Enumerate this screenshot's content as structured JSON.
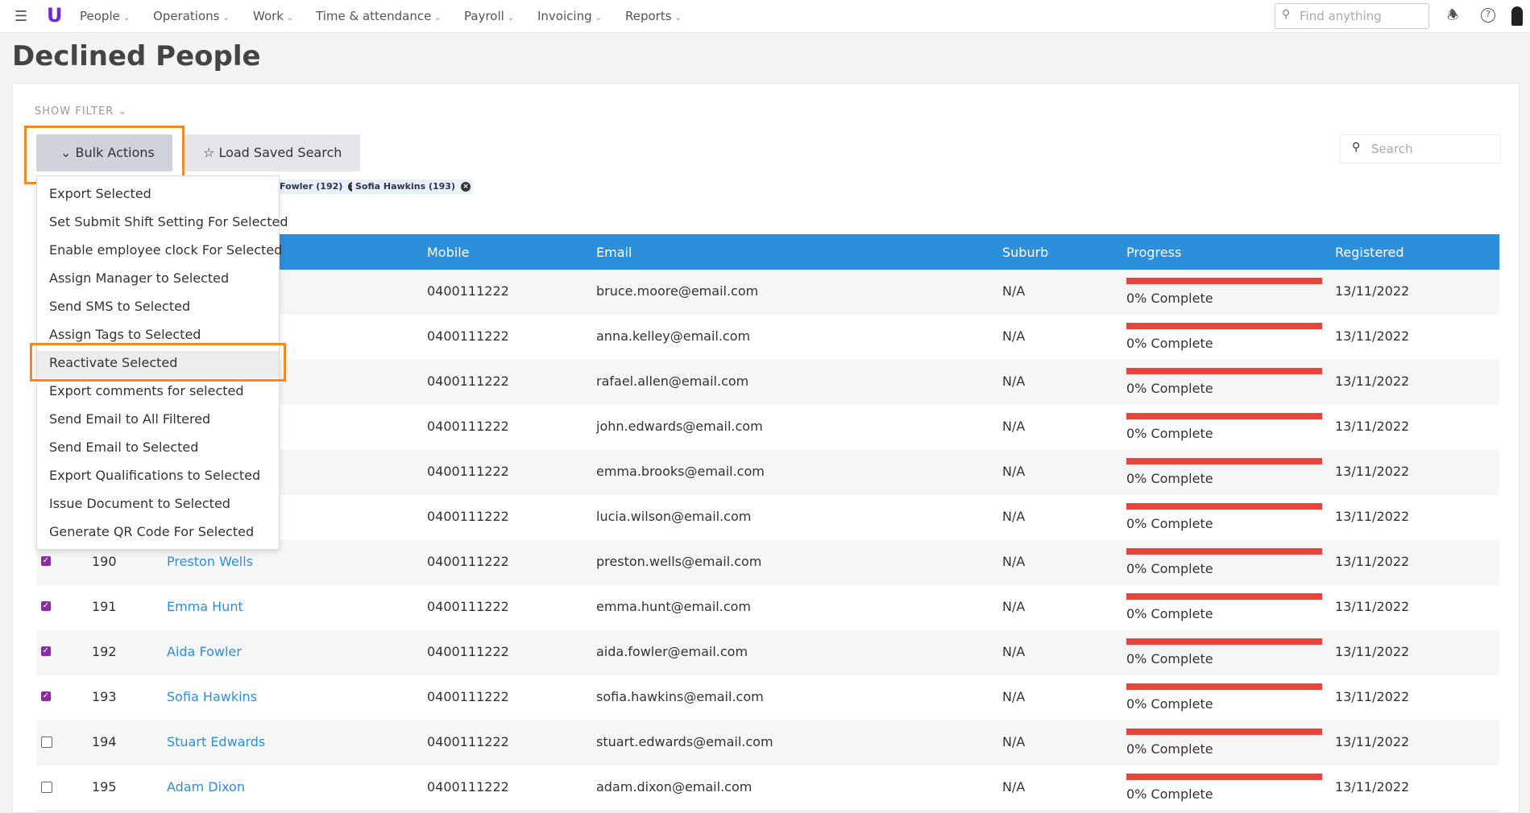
{
  "nav": {
    "items": [
      "People",
      "Operations",
      "Work",
      "Time & attendance",
      "Payroll",
      "Invoicing",
      "Reports"
    ],
    "search_placeholder": "Find anything"
  },
  "header": {
    "title": "Declined People"
  },
  "toolbar": {
    "show_filter": "SHOW FILTER",
    "bulk_actions": "Bulk Actions",
    "load_saved_search": "Load Saved Search",
    "search_placeholder": "Search"
  },
  "chips": [
    "Fowler (192)",
    "Sofia Hawkins (193)"
  ],
  "dropdown": {
    "items": [
      "Export Selected",
      "Set Submit Shift Setting For Selected",
      "Enable employee clock For Selected",
      "Assign Manager to Selected",
      "Send SMS to Selected",
      "Assign Tags to Selected",
      "Reactivate Selected",
      "Export comments for selected",
      "Send Email to All Filtered",
      "Send Email to Selected",
      "Export Qualifications to Selected",
      "Issue Document to Selected",
      "Generate QR Code For Selected"
    ],
    "highlighted": 6
  },
  "table": {
    "columns": [
      "Mobile",
      "Email",
      "Suburb",
      "Progress",
      "Registered"
    ],
    "rows": [
      {
        "mobile": "0400111222",
        "email": "bruce.moore@email.com",
        "suburb": "N/A",
        "progress": "0% Complete",
        "registered": "13/11/2022"
      },
      {
        "mobile": "0400111222",
        "email": "anna.kelley@email.com",
        "suburb": "N/A",
        "progress": "0% Complete",
        "registered": "13/11/2022"
      },
      {
        "mobile": "0400111222",
        "email": "rafael.allen@email.com",
        "suburb": "N/A",
        "progress": "0% Complete",
        "registered": "13/11/2022"
      },
      {
        "mobile": "0400111222",
        "email": "john.edwards@email.com",
        "suburb": "N/A",
        "progress": "0% Complete",
        "registered": "13/11/2022"
      },
      {
        "mobile": "0400111222",
        "email": "emma.brooks@email.com",
        "suburb": "N/A",
        "progress": "0% Complete",
        "registered": "13/11/2022"
      },
      {
        "mobile": "0400111222",
        "email": "lucia.wilson@email.com",
        "suburb": "N/A",
        "progress": "0% Complete",
        "registered": "13/11/2022"
      },
      {
        "checked": true,
        "id": "190",
        "name": "Preston Wells",
        "mobile": "0400111222",
        "email": "preston.wells@email.com",
        "suburb": "N/A",
        "progress": "0% Complete",
        "registered": "13/11/2022"
      },
      {
        "checked": true,
        "id": "191",
        "name": "Emma Hunt",
        "mobile": "0400111222",
        "email": "emma.hunt@email.com",
        "suburb": "N/A",
        "progress": "0% Complete",
        "registered": "13/11/2022"
      },
      {
        "checked": true,
        "id": "192",
        "name": "Aida Fowler",
        "mobile": "0400111222",
        "email": "aida.fowler@email.com",
        "suburb": "N/A",
        "progress": "0% Complete",
        "registered": "13/11/2022"
      },
      {
        "checked": true,
        "id": "193",
        "name": "Sofia Hawkins",
        "mobile": "0400111222",
        "email": "sofia.hawkins@email.com",
        "suburb": "N/A",
        "progress": "0% Complete",
        "registered": "13/11/2022"
      },
      {
        "checked": false,
        "id": "194",
        "name": "Stuart Edwards",
        "mobile": "0400111222",
        "email": "stuart.edwards@email.com",
        "suburb": "N/A",
        "progress": "0% Complete",
        "registered": "13/11/2022"
      },
      {
        "checked": false,
        "id": "195",
        "name": "Adam Dixon",
        "mobile": "0400111222",
        "email": "adam.dixon@email.com",
        "suburb": "N/A",
        "progress": "0% Complete",
        "registered": "13/11/2022"
      }
    ]
  }
}
